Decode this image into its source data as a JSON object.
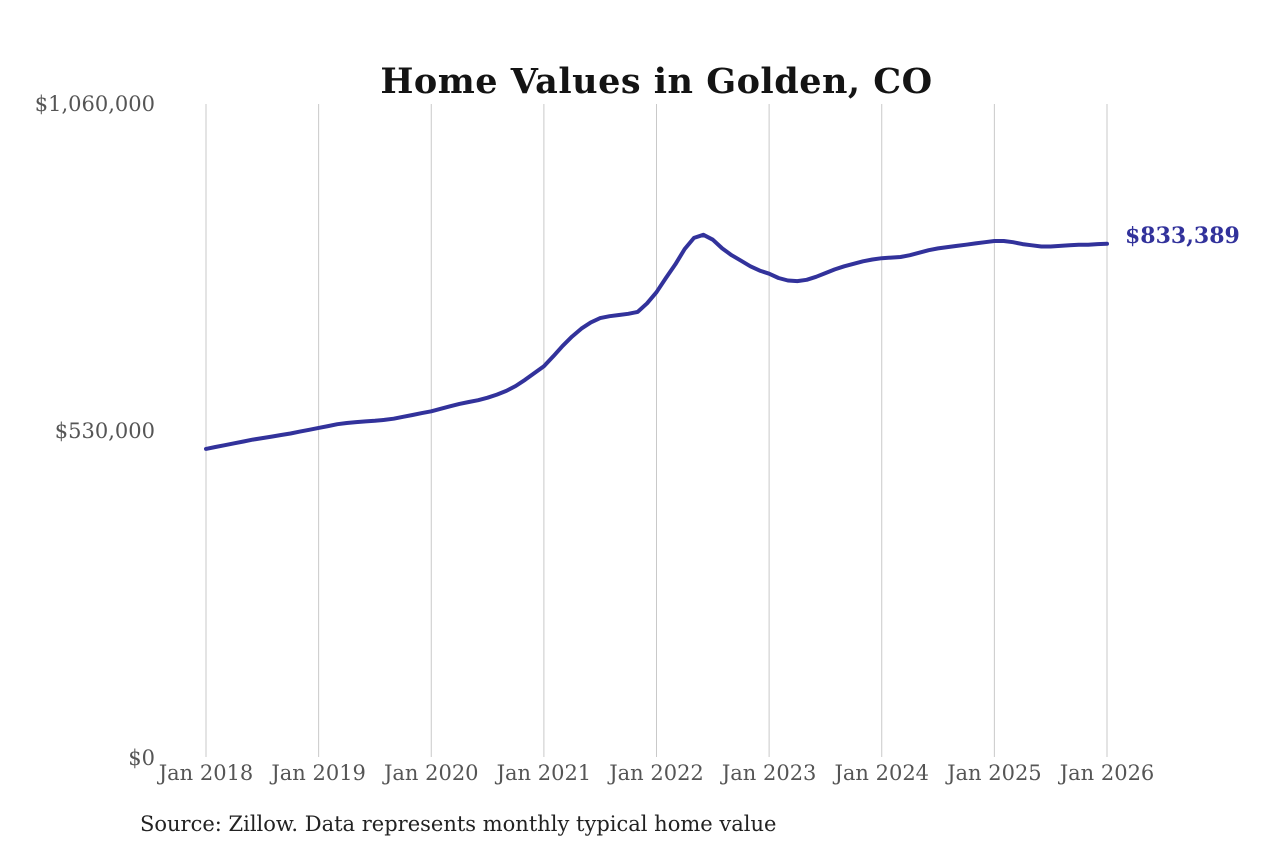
{
  "chart_data": {
    "type": "line",
    "title": "Home Values in Golden, CO",
    "source_note": "Source: Zillow. Data represents monthly typical home value",
    "end_label": "$833,389",
    "end_value": 833389,
    "frequency": "monthly",
    "x_start": "Jan 2018",
    "x_end": "Jan 2026",
    "x_tick_labels": [
      "Jan 2018",
      "Jan 2019",
      "Jan 2020",
      "Jan 2021",
      "Jan 2022",
      "Jan 2023",
      "Jan 2024",
      "Jan 2025",
      "Jan 2026"
    ],
    "y_ticks": [
      {
        "label": "$1,060,000",
        "value": 1060000
      },
      {
        "label": "$530,000",
        "value": 530000
      },
      {
        "label": "$0",
        "value": 0
      }
    ],
    "ylim": [
      0,
      1060000
    ],
    "grid": "vertical-only",
    "legend": "none",
    "series": [
      {
        "name": "Monthly typical home value",
        "values": [
          501000,
          504000,
          507000,
          510000,
          513000,
          516000,
          518500,
          521000,
          523500,
          526000,
          529000,
          532000,
          535000,
          538000,
          541000,
          543000,
          544500,
          545500,
          546500,
          548000,
          550000,
          553000,
          556000,
          559000,
          562000,
          566000,
          570000,
          574000,
          577000,
          580000,
          584000,
          589000,
          595000,
          603000,
          613000,
          624000,
          635000,
          651000,
          668000,
          683000,
          696000,
          706000,
          713000,
          716000,
          718000,
          720000,
          723000,
          737000,
          755000,
          778000,
          800000,
          825000,
          843000,
          848000,
          840000,
          826000,
          815000,
          806000,
          797000,
          790000,
          785000,
          778000,
          774000,
          773000,
          775000,
          780000,
          786000,
          792000,
          797000,
          801000,
          805000,
          808000,
          810000,
          811000,
          812000,
          815000,
          819000,
          823000,
          826000,
          828000,
          830000,
          832000,
          834000,
          836000,
          838000,
          838000,
          836000,
          833000,
          831000,
          829000,
          829000,
          830000,
          831000,
          832000,
          832000,
          833000,
          833389
        ]
      }
    ],
    "colors": {
      "line": "#32329B",
      "end_label": "#32329B",
      "grid": "#c9c9c9",
      "axis_labels": "#555555",
      "title": "#141414",
      "source": "#222222",
      "background": "#ffffff"
    }
  }
}
